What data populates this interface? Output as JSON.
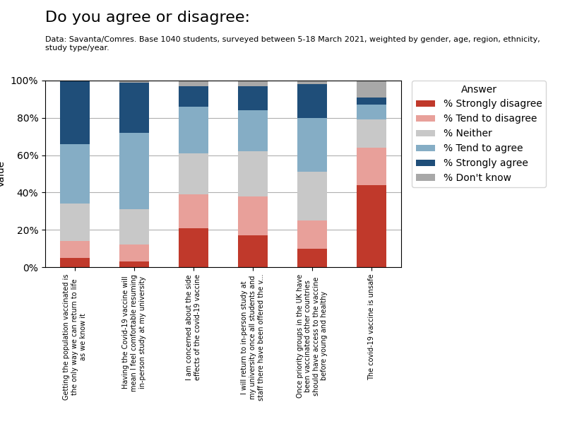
{
  "chart_data": {
    "type": "bar",
    "stacked": true,
    "title": "Do you agree or disagree:",
    "subtitle": "Data: Savanta/Comres. Base 1040 students, surveyed between 5-18 March 2021, weighted by gender, age, region, ethnicity,\nstudy type/year.",
    "y_label": "Value",
    "legend_title": "Answer",
    "legend": "upper left",
    "grid": true,
    "categories": [
      "Getting the population vaccinated is\nthe only way we can return to life\nas we know it",
      "Having the Covid-19 vaccine will\nmean I feel comfortable resuming\nin-person study at my university",
      "I am concerned about the side\neffects of the covid-19 vaccine",
      "I will return to in-person study at\nmy university once all students and\nstaff there have been offered the v...",
      "Once priority groups in the UK have\nbeen vaccinated other countries\nshould have access to the vaccine\nbefore young and healthy",
      "The covid-19 vaccine is unsafe"
    ],
    "series": [
      {
        "name": "% Strongly disagree",
        "color": "#c0392b",
        "values": [
          5,
          3,
          21,
          17,
          10,
          44
        ]
      },
      {
        "name": "% Tend to disagree",
        "color": "#e8a09a",
        "values": [
          9,
          9,
          18,
          21,
          15,
          20
        ]
      },
      {
        "name": "% Neither",
        "color": "#c8c8c8",
        "values": [
          20,
          19,
          22,
          24,
          26,
          15
        ]
      },
      {
        "name": "% Tend to agree",
        "color": "#85adc5",
        "values": [
          32,
          41,
          25,
          22,
          29,
          8
        ]
      },
      {
        "name": "% Strongly agree",
        "color": "#1f4e79",
        "values": [
          34,
          27,
          11,
          13,
          18,
          4
        ]
      },
      {
        "name": "% Don't know",
        "color": "#a8a8a8",
        "values": [
          0,
          1,
          3,
          3,
          2,
          9
        ]
      }
    ],
    "ylim": [
      0,
      100
    ],
    "yticks": [
      {
        "value": 0,
        "label": "0%"
      },
      {
        "value": 20,
        "label": "20%"
      },
      {
        "value": 40,
        "label": "40%"
      },
      {
        "value": 60,
        "label": "60%"
      },
      {
        "value": 80,
        "label": "80%"
      },
      {
        "value": 100,
        "label": "100%"
      }
    ]
  }
}
